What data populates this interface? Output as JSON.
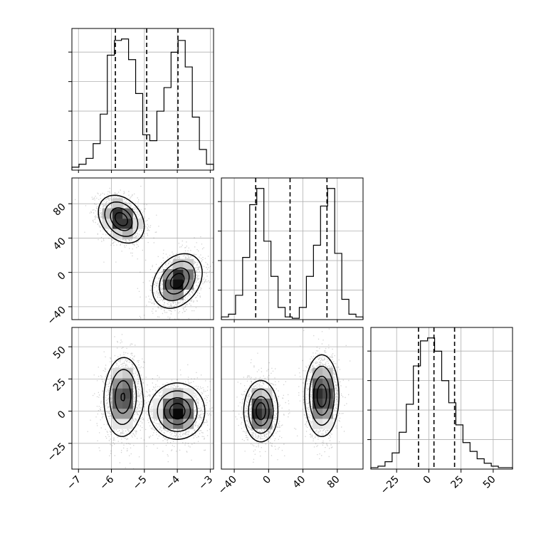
{
  "chart_data": {
    "type": "corner",
    "title": "",
    "parameters": [
      "",
      "",
      ""
    ],
    "grid": true,
    "ranges": [
      [
        -7.2,
        -2.9
      ],
      [
        -55,
        110
      ],
      [
        -45,
        65
      ]
    ],
    "ticks": [
      {
        "values": [
          -7,
          -6,
          -5,
          -4,
          -3
        ],
        "labels": [
          "−7",
          "−6",
          "−5",
          "−4",
          "−3"
        ]
      },
      {
        "values": [
          -40,
          0,
          40,
          80
        ],
        "labels": [
          "−40",
          "0",
          "40",
          "80"
        ]
      },
      {
        "values": [
          -25,
          0,
          25,
          50
        ],
        "labels": [
          "−25",
          "0",
          "25",
          "50"
        ]
      }
    ],
    "histograms": [
      {
        "param": 0,
        "bin_edges": [
          -7.2,
          -6.985,
          -6.77,
          -6.555,
          -6.34,
          -6.125,
          -5.91,
          -5.695,
          -5.48,
          -5.265,
          -5.05,
          -4.835,
          -4.62,
          -4.405,
          -4.19,
          -3.975,
          -3.76,
          -3.545,
          -3.33,
          -3.115,
          -2.9
        ],
        "counts": [
          2,
          4,
          8,
          18,
          38,
          78,
          88,
          89,
          75,
          52,
          24,
          20,
          40,
          56,
          80,
          88,
          70,
          36,
          14,
          4
        ],
        "quantiles": [
          -5.88,
          -4.93,
          -3.98
        ]
      },
      {
        "param": 1,
        "bin_edges": [
          -55,
          -46.75,
          -38.5,
          -30.25,
          -22,
          -13.75,
          -5.5,
          2.75,
          11,
          19.25,
          27.5,
          35.75,
          44,
          52.25,
          60.5,
          68.75,
          77,
          85.25,
          93.5,
          101.75,
          110
        ],
        "counts": [
          2,
          4,
          18,
          46,
          85,
          97,
          58,
          32,
          9,
          2,
          1,
          9,
          32,
          55,
          84,
          97,
          49,
          15,
          4,
          2
        ],
        "quantiles": [
          -15,
          25,
          68
        ]
      },
      {
        "param": 2,
        "bin_edges": [
          -45,
          -39.5,
          -34,
          -28.5,
          -23,
          -17.5,
          -12,
          -6.5,
          -1,
          4.5,
          10,
          15.5,
          21,
          26.5,
          32,
          37.5,
          43,
          48.5,
          54,
          59.5,
          65
        ],
        "counts": [
          1,
          2,
          5,
          11,
          25,
          44,
          70,
          87,
          89,
          80,
          60,
          45,
          30,
          18,
          12,
          7,
          4,
          2,
          1,
          1
        ],
        "quantiles": [
          -8,
          4,
          20
        ]
      }
    ],
    "joint": [
      {
        "x": 0,
        "y": 1,
        "modes": [
          {
            "cx": -5.7,
            "cy": 62,
            "sx": 0.35,
            "sy": 14,
            "rho": -0.3,
            "n": 1500
          },
          {
            "cx": -4.0,
            "cy": -10,
            "sx": 0.38,
            "sy": 16,
            "rho": 0.3,
            "n": 1500
          }
        ]
      },
      {
        "x": 0,
        "y": 2,
        "modes": [
          {
            "cx": -5.65,
            "cy": 11,
            "sx": 0.3,
            "sy": 16,
            "rho": 0.05,
            "n": 1400
          },
          {
            "cx": -4.0,
            "cy": 0,
            "sx": 0.42,
            "sy": 11,
            "rho": 0.0,
            "n": 1600
          }
        ]
      },
      {
        "x": 1,
        "y": 2,
        "modes": [
          {
            "cx": -9,
            "cy": 0,
            "sx": 10,
            "sy": 12,
            "rho": 0.0,
            "n": 1500
          },
          {
            "cx": 62,
            "cy": 12,
            "sx": 10,
            "sy": 16,
            "rho": 0.0,
            "n": 1500
          }
        ]
      }
    ]
  }
}
